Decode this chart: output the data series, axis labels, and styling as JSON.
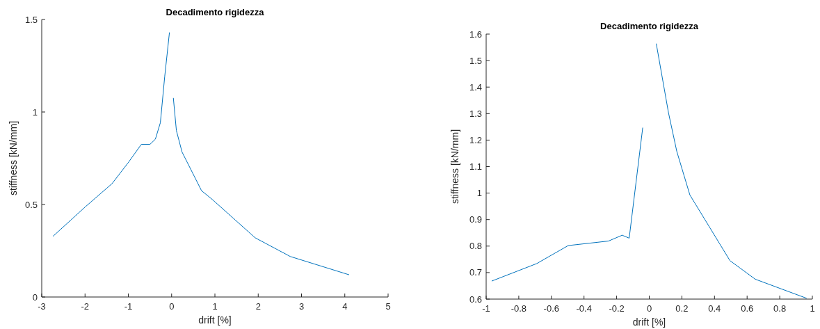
{
  "chart_data": [
    {
      "type": "line",
      "title": "Decadimento rigidezza",
      "xlabel": "drift [%]",
      "ylabel": "stiffness [kN/mm]",
      "xlim": [
        -3,
        5
      ],
      "ylim": [
        0,
        1.5
      ],
      "xticks": [
        -3,
        -2,
        -1,
        0,
        1,
        2,
        3,
        4,
        5
      ],
      "yticks": [
        0,
        0.5,
        1,
        1.5
      ],
      "grid": false,
      "series": [
        {
          "color": "#0072bd",
          "x": [
            -2.74,
            -2.0,
            -1.375,
            -0.99,
            -0.7,
            -0.5,
            -0.375,
            -0.26,
            -0.16,
            -0.05
          ],
          "values": [
            0.328,
            0.486,
            0.613,
            0.73,
            0.825,
            0.825,
            0.853,
            0.942,
            1.19,
            1.43
          ]
        },
        {
          "color": "#0072bd",
          "x": [
            0.04,
            0.11,
            0.24,
            0.69,
            0.95,
            1.93,
            2.74,
            4.1
          ],
          "values": [
            1.076,
            0.9,
            0.784,
            0.575,
            0.525,
            0.32,
            0.219,
            0.12
          ]
        }
      ]
    },
    {
      "type": "line",
      "title": "Decadimento rigidezza",
      "xlabel": "drift [%]",
      "ylabel": "stiffness [kN/mm]",
      "xlim": [
        -1,
        1
      ],
      "ylim": [
        0.6,
        1.6
      ],
      "xticks": [
        -1,
        -0.8,
        -0.6,
        -0.4,
        -0.2,
        0,
        0.2,
        0.4,
        0.6,
        0.8,
        1
      ],
      "yticks": [
        0.6,
        0.7,
        0.8,
        0.9,
        1,
        1.1,
        1.2,
        1.3,
        1.4,
        1.5,
        1.6
      ],
      "grid": false,
      "series": [
        {
          "color": "#0072bd",
          "x": [
            -0.966,
            -0.69,
            -0.497,
            -0.25,
            -0.166,
            -0.123,
            -0.04
          ],
          "values": [
            0.668,
            0.734,
            0.802,
            0.819,
            0.841,
            0.83,
            1.247
          ]
        },
        {
          "color": "#0072bd",
          "x": [
            0.043,
            0.118,
            0.169,
            0.249,
            0.495,
            0.65,
            0.965
          ],
          "values": [
            1.564,
            1.303,
            1.157,
            0.993,
            0.745,
            0.675,
            0.603
          ]
        }
      ]
    }
  ]
}
